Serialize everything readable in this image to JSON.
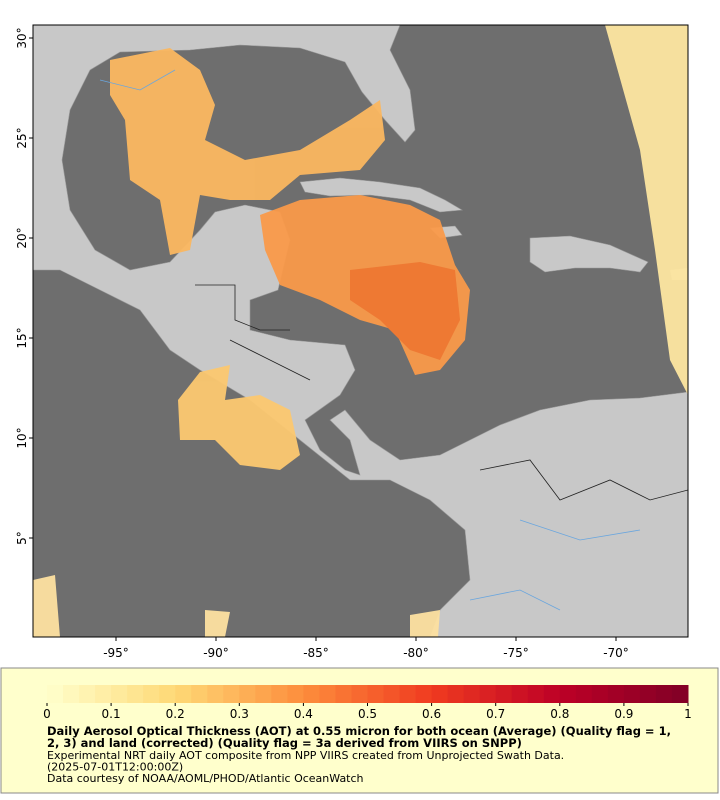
{
  "map": {
    "lonlim": [
      -99.15,
      -66.4
    ],
    "latlim": [
      0.05,
      30.65
    ],
    "lon_ticks": [
      {
        "value": -95,
        "label": "-95°"
      },
      {
        "value": -90,
        "label": "-90°"
      },
      {
        "value": -85,
        "label": "-85°"
      },
      {
        "value": -80,
        "label": "-80°"
      },
      {
        "value": -75,
        "label": "-75°"
      },
      {
        "value": -70,
        "label": "-70°"
      }
    ],
    "lat_ticks": [
      {
        "value": 5,
        "label": "5°"
      },
      {
        "value": 10,
        "label": "10°"
      },
      {
        "value": 15,
        "label": "15°"
      },
      {
        "value": 20,
        "label": "20°"
      },
      {
        "value": 25,
        "label": "25°"
      },
      {
        "value": 30,
        "label": "30°"
      }
    ]
  },
  "colorbar": {
    "range": [
      0,
      1
    ],
    "ticks": [
      0,
      0.1,
      0.2,
      0.3,
      0.4,
      0.5,
      0.6,
      0.7,
      0.8,
      0.9,
      1
    ]
  },
  "caption": {
    "title_lines": [
      "Daily Aerosol Optical Thickness (AOT) at 0.55 micron for both ocean (Average) (Quality flag = 1,",
      "2, 3) and land (corrected) (Quality flag = 3a derived from VIIRS on SNPP)"
    ],
    "lines": [
      "Experimental NRT daily AOT composite from NPP VIIRS created from Unprojected Swath Data.",
      "(2025-07-01T12:00:00Z)",
      "Data courtesy of NOAA/AOML/PHOD/Atlantic OceanWatch"
    ]
  }
}
